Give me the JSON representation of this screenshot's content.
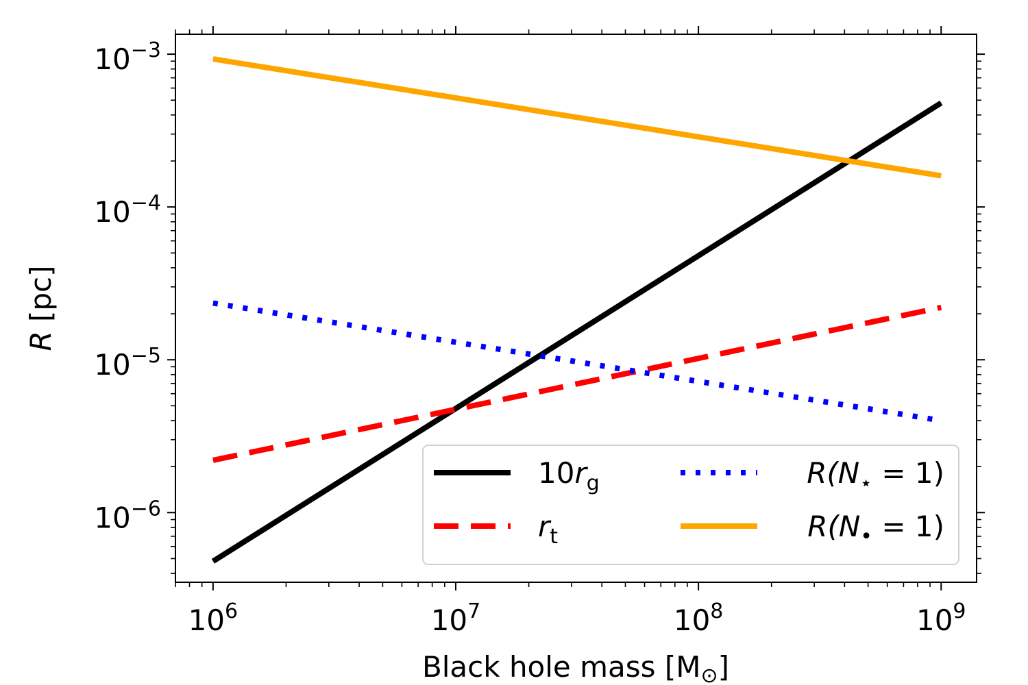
{
  "chart_data": {
    "type": "line",
    "title": "",
    "xscale": "log",
    "yscale": "log",
    "xlim": [
      700000,
      1400000000
    ],
    "ylim": [
      3.5e-07,
      0.00135
    ],
    "xlabel": {
      "prefix": "Black hole mass [M",
      "sub": "⊙",
      "suffix": "]"
    },
    "ylabel": {
      "var": "R",
      "rest": " [pc]"
    },
    "x_ticks": [
      {
        "base": "10",
        "exp": "6",
        "value": 1000000
      },
      {
        "base": "10",
        "exp": "7",
        "value": 10000000
      },
      {
        "base": "10",
        "exp": "8",
        "value": 100000000
      },
      {
        "base": "10",
        "exp": "9",
        "value": 1000000000
      }
    ],
    "y_ticks": [
      {
        "base": "10",
        "exp": "−6",
        "value": 1e-06
      },
      {
        "base": "10",
        "exp": "−5",
        "value": 1e-05
      },
      {
        "base": "10",
        "exp": "−4",
        "value": 0.0001
      },
      {
        "base": "10",
        "exp": "−3",
        "value": 0.001
      }
    ],
    "series": [
      {
        "name": "10r_g",
        "label_pre": "10",
        "label_var": "r",
        "label_sub": "g",
        "label_post": "",
        "color": "#000000",
        "style": "solid",
        "x": [
          1000000,
          1000000000
        ],
        "y": [
          4.8e-07,
          0.00048
        ]
      },
      {
        "name": "r_t",
        "label_pre": "",
        "label_var": "r",
        "label_sub": "t",
        "label_post": "",
        "color": "#ff0000",
        "style": "dashed",
        "x": [
          1000000,
          1000000000
        ],
        "y": [
          2.2e-06,
          2.2e-05
        ]
      },
      {
        "name": "R(N_star=1)",
        "label_pre": "",
        "label_var": "R(N",
        "label_sub": "⋆",
        "label_post": " = 1)",
        "color": "#0000ff",
        "style": "dotted",
        "x": [
          1000000,
          1000000000
        ],
        "y": [
          2.35e-05,
          4e-06
        ]
      },
      {
        "name": "R(N_bh=1)",
        "label_pre": "",
        "label_var": "R(N",
        "label_sub": "•",
        "label_post": " = 1)",
        "color": "#ffa500",
        "style": "solid",
        "x": [
          1000000,
          1000000000
        ],
        "y": [
          0.00093,
          0.00016
        ]
      }
    ],
    "legend": {
      "position": "lower-right",
      "columns": 2
    },
    "grid": false
  }
}
